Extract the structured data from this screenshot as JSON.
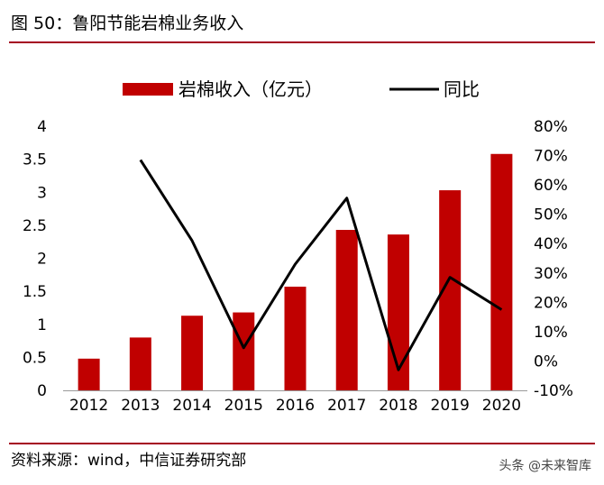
{
  "header": {
    "title": "图 50：鲁阳节能岩棉业务收入"
  },
  "footer": {
    "source": "资料来源：wind，中信证券研究部",
    "watermark": "头条 @未来智库"
  },
  "colors": {
    "bar": "#c00000",
    "line": "#000000",
    "accent_rule": "#a50021"
  },
  "chart_data": {
    "type": "bar",
    "title": "",
    "categories": [
      "2012",
      "2013",
      "2014",
      "2015",
      "2016",
      "2017",
      "2018",
      "2019",
      "2020"
    ],
    "series": [
      {
        "name": "岩棉收入（亿元）",
        "type": "bar",
        "axis": "left",
        "values": [
          0.48,
          0.8,
          1.13,
          1.18,
          1.57,
          2.43,
          2.36,
          3.03,
          3.58
        ]
      },
      {
        "name": "同比",
        "type": "line",
        "axis": "right",
        "values": [
          null,
          68.5,
          41.0,
          4.5,
          33.0,
          55.5,
          -3.0,
          28.5,
          17.5
        ]
      }
    ],
    "ylim": [
      0,
      4
    ],
    "yticks": [
      "0",
      "0.5",
      "1",
      "1.5",
      "2",
      "2.5",
      "3",
      "3.5",
      "4"
    ],
    "y2lim": [
      -10,
      80
    ],
    "y2ticks": [
      "-10%",
      "0%",
      "10%",
      "20%",
      "30%",
      "40%",
      "50%",
      "60%",
      "70%",
      "80%"
    ],
    "legend_position": "top",
    "grid": false
  }
}
